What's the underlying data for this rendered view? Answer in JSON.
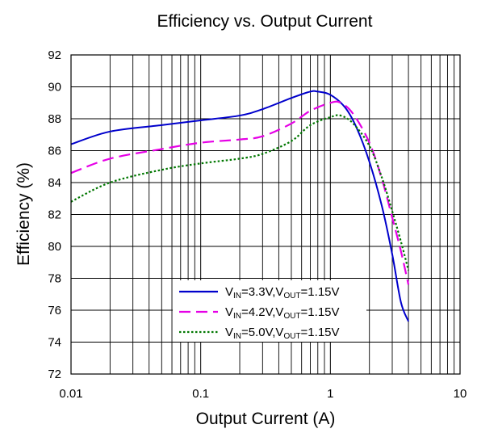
{
  "chart_data": {
    "type": "line",
    "title": "Efficiency vs. Output Current",
    "xlabel": "Output Current (A)",
    "ylabel": "Efficiency (%)",
    "x_scale": "log",
    "xlim": [
      0.01,
      10
    ],
    "ylim": [
      72,
      92
    ],
    "x_ticks": [
      0.01,
      0.1,
      1,
      10
    ],
    "x_tick_labels": [
      "0.01",
      "0.1",
      "1",
      "10"
    ],
    "y_ticks": [
      72,
      74,
      76,
      78,
      80,
      82,
      84,
      86,
      88,
      90,
      92
    ],
    "grid": true,
    "legend_position": "bottom-center",
    "series": [
      {
        "name": "VIN=3.3V,VOUT=1.15V",
        "legend": {
          "a": "V",
          "a_sub": "IN",
          "b": "=3.3V,V",
          "b_sub": "OUT",
          "c": "=1.15V"
        },
        "color": "#0000cc",
        "style": "solid",
        "x": [
          0.01,
          0.02,
          0.05,
          0.1,
          0.2,
          0.3,
          0.5,
          0.7,
          0.8,
          1.0,
          1.3,
          1.6,
          2.0,
          2.5,
          3.0,
          3.5,
          4.0
        ],
        "y": [
          86.4,
          87.2,
          87.6,
          87.9,
          88.2,
          88.6,
          89.3,
          89.7,
          89.7,
          89.5,
          88.7,
          87.4,
          85.3,
          82.5,
          79.5,
          76.5,
          75.3
        ]
      },
      {
        "name": "VIN=4.2V,VOUT=1.15V",
        "legend": {
          "a": "V",
          "a_sub": "IN",
          "b": "=4.2V,V",
          "b_sub": "OUT",
          "c": "=1.15V"
        },
        "color": "#e600e6",
        "style": "dashed",
        "x": [
          0.01,
          0.02,
          0.05,
          0.1,
          0.2,
          0.3,
          0.5,
          0.7,
          1.0,
          1.2,
          1.5,
          2.0,
          2.5,
          3.0,
          3.5,
          4.0
        ],
        "y": [
          84.6,
          85.5,
          86.1,
          86.5,
          86.7,
          86.9,
          87.7,
          88.5,
          89.0,
          89.0,
          88.3,
          86.5,
          84.2,
          81.8,
          79.7,
          77.6
        ]
      },
      {
        "name": "VIN=5.0V,VOUT=1.15V",
        "legend": {
          "a": "V",
          "a_sub": "IN",
          "b": "=5.0V,V",
          "b_sub": "OUT",
          "c": "=1.15V"
        },
        "color": "#007700",
        "style": "dotted",
        "x": [
          0.01,
          0.02,
          0.05,
          0.1,
          0.2,
          0.3,
          0.5,
          0.7,
          1.0,
          1.2,
          1.5,
          2.0,
          2.5,
          3.0,
          3.5,
          4.0
        ],
        "y": [
          82.8,
          84.0,
          84.8,
          85.2,
          85.5,
          85.8,
          86.6,
          87.6,
          88.1,
          88.2,
          87.7,
          86.3,
          84.3,
          82.2,
          80.3,
          78.5
        ]
      }
    ]
  }
}
